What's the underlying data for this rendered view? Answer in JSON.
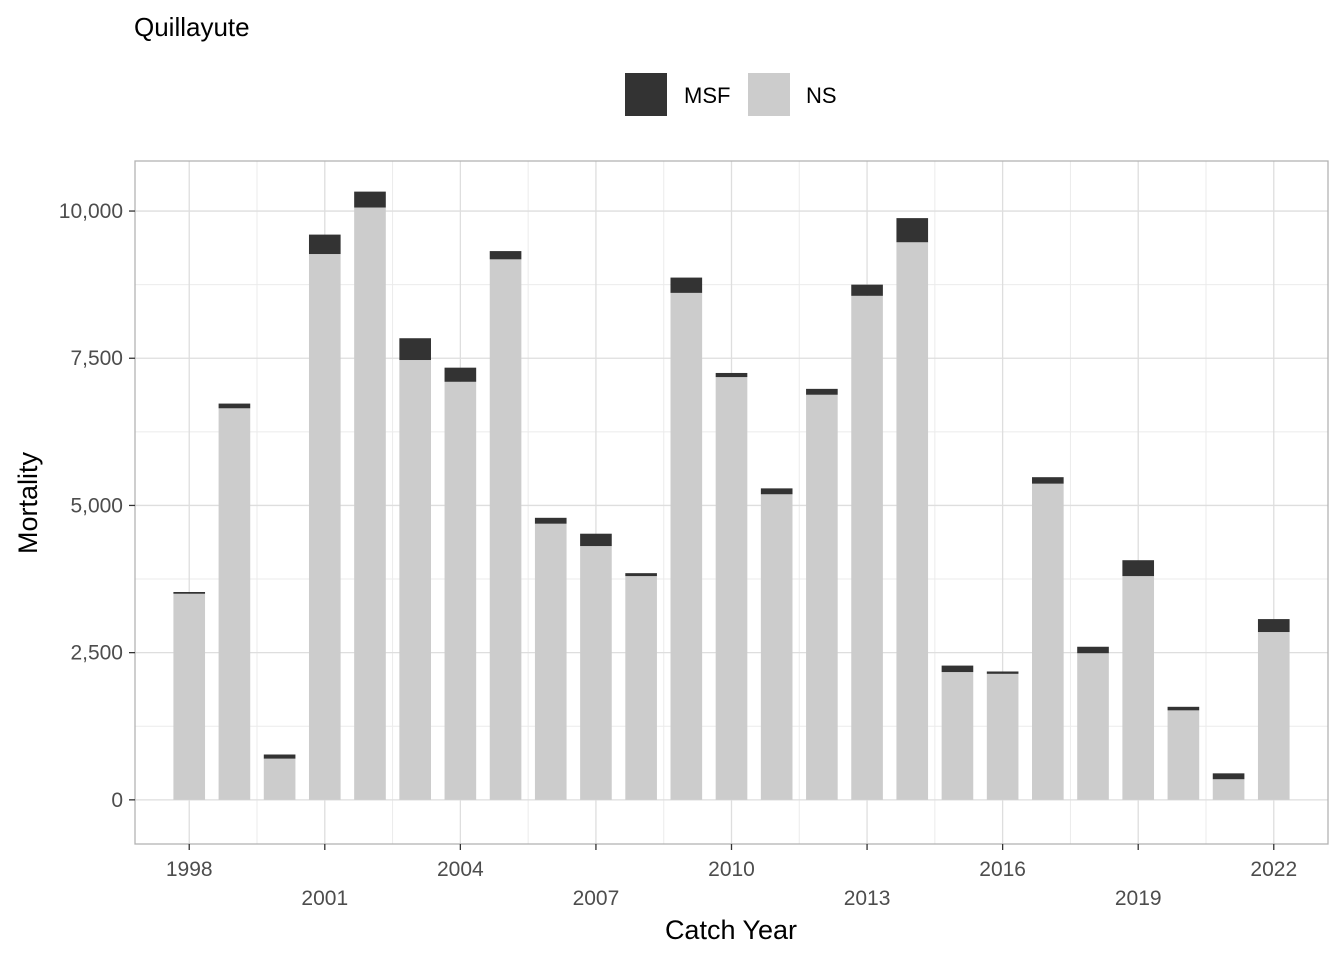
{
  "chart_data": {
    "type": "bar",
    "stacked": true,
    "title": "Quillayute",
    "xlabel": "Catch Year",
    "ylabel": "Mortality",
    "legend_position": "top",
    "grid": true,
    "ylim": [
      -750,
      10850
    ],
    "xlim": [
      1996.8,
      2023.2
    ],
    "y_ticks": [
      0,
      2500,
      5000,
      7500,
      10000
    ],
    "y_tick_labels": [
      "0",
      "2,500",
      "5,000",
      "7,500",
      "10,000"
    ],
    "x_ticks": [
      1998,
      2001,
      2004,
      2007,
      2010,
      2013,
      2016,
      2019,
      2022
    ],
    "x_tick_labels": [
      "1998",
      "2001",
      "2004",
      "2007",
      "2010",
      "2013",
      "2016",
      "2019",
      "2022"
    ],
    "x": [
      1998,
      1999,
      2000,
      2001,
      2002,
      2003,
      2004,
      2005,
      2006,
      2007,
      2008,
      2009,
      2010,
      2011,
      2012,
      2013,
      2014,
      2015,
      2016,
      2017,
      2018,
      2019,
      2020,
      2021,
      2022
    ],
    "series": [
      {
        "name": "NS",
        "color": "#cccccc",
        "values": [
          3500,
          6650,
          700,
          9270,
          10060,
          7470,
          7100,
          9180,
          4690,
          4310,
          3800,
          8610,
          7180,
          5190,
          6880,
          8560,
          9470,
          2170,
          2140,
          5370,
          2490,
          3800,
          1520,
          350,
          2850
        ]
      },
      {
        "name": "MSF",
        "color": "#333333",
        "values": [
          30,
          80,
          70,
          330,
          270,
          370,
          240,
          140,
          100,
          210,
          50,
          260,
          70,
          100,
          100,
          190,
          410,
          110,
          40,
          110,
          110,
          270,
          60,
          100,
          220
        ]
      }
    ]
  }
}
